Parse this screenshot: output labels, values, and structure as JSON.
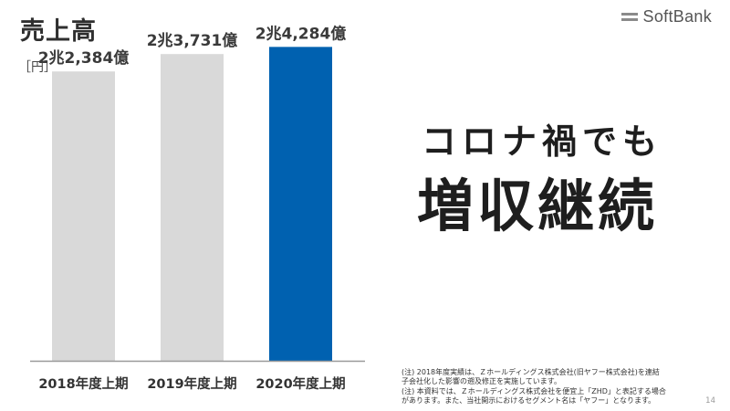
{
  "header": {
    "title": "売上高",
    "brand": "SoftBank"
  },
  "chart_data": {
    "type": "bar",
    "unit_label": "［円］",
    "categories": [
      "2018年度上期",
      "2019年度上期",
      "2020年度上期"
    ],
    "values": [
      2.2384,
      2.3731,
      2.4284
    ],
    "value_labels": [
      "2兆2,384億",
      "2兆3,731億",
      "2兆4,284億"
    ],
    "colors": [
      "#d9d9d9",
      "#d9d9d9",
      "#0061b0"
    ],
    "ylim": [
      0,
      2.65
    ]
  },
  "slogan": {
    "line1": "コロナ禍でも",
    "line2": "増収継続"
  },
  "notes": [
    "(注) 2018年度実績は、Ｚホールディングス株式会社(旧ヤフー株式会社)を連結",
    "子会社化した影響の遡及修正を実施しています。",
    "(注) 本資料では、Ｚホールディングス株式会社を便宜上「ZHD」と表記する場合",
    "があります。また、当社開示におけるセグメント名は「ヤフー」となります。"
  ],
  "page_number": "14"
}
